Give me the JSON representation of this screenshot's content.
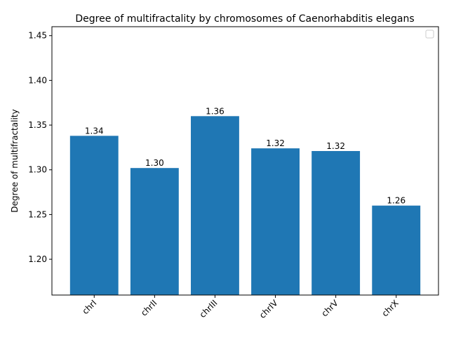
{
  "chart_data": {
    "type": "bar",
    "title": "Degree of multifractality by chromosomes of Caenorhabditis elegans",
    "xlabel": "",
    "ylabel": "Degree of multifractality",
    "categories": [
      "chrI",
      "chrII",
      "chrIII",
      "chrIV",
      "chrV",
      "chrX"
    ],
    "values": [
      1.338,
      1.302,
      1.36,
      1.324,
      1.321,
      1.26
    ],
    "value_labels": [
      "1.34",
      "1.30",
      "1.36",
      "1.32",
      "1.32",
      "1.26"
    ],
    "ylim": [
      1.16,
      1.46
    ],
    "yticks": [
      1.2,
      1.25,
      1.3,
      1.35,
      1.4,
      1.45
    ],
    "ytick_labels": [
      "1.20",
      "1.25",
      "1.30",
      "1.35",
      "1.40",
      "1.45"
    ],
    "bar_color": "#1f77b4",
    "grid": false,
    "legend": "top-right, empty"
  }
}
